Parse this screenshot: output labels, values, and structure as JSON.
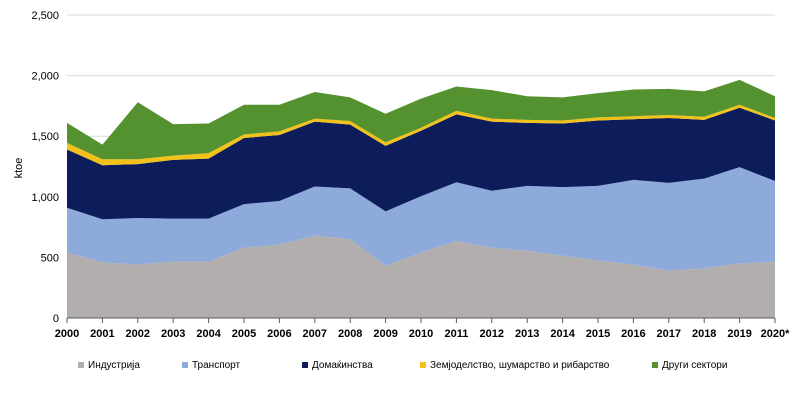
{
  "chart_data": {
    "type": "area",
    "stacked": true,
    "x": [
      "2000",
      "2001",
      "2002",
      "2003",
      "2004",
      "2005",
      "2006",
      "2007",
      "2008",
      "2009",
      "2010",
      "2011",
      "2012",
      "2013",
      "2014",
      "2015",
      "2016",
      "2017",
      "2018",
      "2019",
      "2020*"
    ],
    "ylabel": "ktoe",
    "ylim": [
      0,
      2500
    ],
    "yticks": [
      0,
      500,
      1000,
      1500,
      2000,
      2500
    ],
    "ytick_labels": [
      "0",
      "500",
      "1,000",
      "1,500",
      "2,000",
      "2,500"
    ],
    "grid": true,
    "legend_position": "bottom",
    "series": [
      {
        "name": "Индустрија",
        "color": "#b3aeae",
        "values": [
          540,
          460,
          440,
          465,
          465,
          580,
          605,
          680,
          650,
          430,
          540,
          635,
          580,
          555,
          515,
          475,
          440,
          390,
          410,
          450,
          465
        ]
      },
      {
        "name": "Транспорт",
        "color": "#8eaadb",
        "values": [
          370,
          355,
          385,
          355,
          355,
          360,
          360,
          405,
          420,
          450,
          465,
          485,
          470,
          535,
          565,
          615,
          700,
          725,
          740,
          795,
          665
        ]
      },
      {
        "name": "Домаќинства",
        "color": "#0d1d5c",
        "values": [
          480,
          445,
          445,
          485,
          495,
          545,
          545,
          535,
          525,
          540,
          540,
          560,
          570,
          520,
          525,
          540,
          500,
          535,
          485,
          490,
          500
        ]
      },
      {
        "name": "Земјоделство, шумарство и рибарство",
        "color": "#f2c21a",
        "values": [
          55,
          50,
          40,
          35,
          45,
          30,
          30,
          25,
          30,
          30,
          25,
          30,
          25,
          25,
          25,
          25,
          25,
          25,
          25,
          25,
          20
        ]
      },
      {
        "name": "Други сектори",
        "color": "#54922f",
        "values": [
          165,
          120,
          470,
          260,
          245,
          245,
          220,
          220,
          195,
          235,
          240,
          200,
          235,
          195,
          190,
          200,
          220,
          215,
          210,
          205,
          180
        ]
      }
    ]
  }
}
